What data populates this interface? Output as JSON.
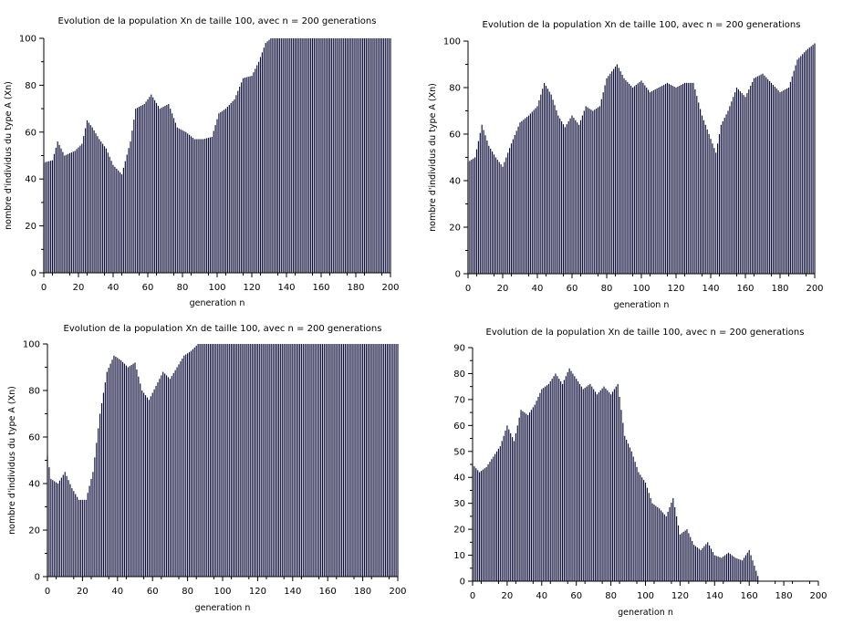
{
  "chart_data": [
    {
      "type": "bar",
      "title": "Evolution de la population Xn de taille 100, avec n = 200 generations",
      "xlabel": "generation n",
      "ylabel": "nombre d'individus du type A (Xn)",
      "xlim": [
        0,
        200
      ],
      "ylim": [
        0,
        100
      ],
      "xticks": [
        "0",
        "20",
        "40",
        "60",
        "80",
        "100",
        "120",
        "140",
        "160",
        "180",
        "200"
      ],
      "yticks": [
        "0",
        "20",
        "40",
        "60",
        "80",
        "100"
      ],
      "keypoints": [
        [
          0,
          47
        ],
        [
          5,
          48
        ],
        [
          8,
          56
        ],
        [
          12,
          50
        ],
        [
          18,
          52
        ],
        [
          22,
          55
        ],
        [
          25,
          65
        ],
        [
          28,
          62
        ],
        [
          32,
          57
        ],
        [
          36,
          53
        ],
        [
          40,
          46
        ],
        [
          45,
          42
        ],
        [
          50,
          56
        ],
        [
          53,
          70
        ],
        [
          58,
          72
        ],
        [
          62,
          76
        ],
        [
          67,
          70
        ],
        [
          72,
          72
        ],
        [
          77,
          62
        ],
        [
          82,
          60
        ],
        [
          87,
          57
        ],
        [
          92,
          57
        ],
        [
          97,
          58
        ],
        [
          101,
          68
        ],
        [
          105,
          70
        ],
        [
          110,
          74
        ],
        [
          115,
          83
        ],
        [
          120,
          84
        ],
        [
          124,
          90
        ],
        [
          128,
          98
        ],
        [
          131,
          100
        ],
        [
          200,
          100
        ]
      ]
    },
    {
      "type": "bar",
      "title": "Evolution de la population Xn de taille 100, avec n = 200 generations",
      "xlabel": "generation n",
      "ylabel": "nombre d'individus du type A (Xn)",
      "xlim": [
        0,
        200
      ],
      "ylim": [
        0,
        100
      ],
      "xticks": [
        "0",
        "20",
        "40",
        "60",
        "80",
        "100",
        "120",
        "140",
        "160",
        "180",
        "200"
      ],
      "yticks": [
        "0",
        "20",
        "40",
        "60",
        "80",
        "100"
      ],
      "keypoints": [
        [
          0,
          48
        ],
        [
          4,
          50
        ],
        [
          8,
          64
        ],
        [
          12,
          55
        ],
        [
          16,
          50
        ],
        [
          20,
          46
        ],
        [
          25,
          56
        ],
        [
          30,
          65
        ],
        [
          35,
          68
        ],
        [
          40,
          72
        ],
        [
          44,
          82
        ],
        [
          48,
          77
        ],
        [
          52,
          68
        ],
        [
          56,
          63
        ],
        [
          60,
          68
        ],
        [
          64,
          64
        ],
        [
          68,
          72
        ],
        [
          72,
          70
        ],
        [
          76,
          72
        ],
        [
          80,
          84
        ],
        [
          86,
          90
        ],
        [
          90,
          84
        ],
        [
          95,
          80
        ],
        [
          100,
          83
        ],
        [
          105,
          78
        ],
        [
          110,
          80
        ],
        [
          115,
          82
        ],
        [
          120,
          80
        ],
        [
          125,
          82
        ],
        [
          130,
          82
        ],
        [
          135,
          68
        ],
        [
          140,
          58
        ],
        [
          143,
          52
        ],
        [
          146,
          64
        ],
        [
          150,
          70
        ],
        [
          155,
          80
        ],
        [
          160,
          76
        ],
        [
          165,
          84
        ],
        [
          170,
          86
        ],
        [
          175,
          82
        ],
        [
          180,
          78
        ],
        [
          185,
          80
        ],
        [
          190,
          92
        ],
        [
          195,
          96
        ],
        [
          200,
          99
        ]
      ]
    },
    {
      "type": "bar",
      "title": "Evolution de la population Xn de taille 100, avec n = 200 generations",
      "xlabel": "generation n",
      "ylabel": "nombre d'individus du type A (Xn)",
      "xlim": [
        0,
        200
      ],
      "ylim": [
        0,
        100
      ],
      "xticks": [
        "0",
        "20",
        "40",
        "60",
        "80",
        "100",
        "120",
        "140",
        "160",
        "180",
        "200"
      ],
      "yticks": [
        "0",
        "20",
        "40",
        "60",
        "80",
        "100"
      ],
      "keypoints": [
        [
          0,
          52
        ],
        [
          2,
          42
        ],
        [
          6,
          40
        ],
        [
          10,
          45
        ],
        [
          14,
          38
        ],
        [
          18,
          33
        ],
        [
          22,
          33
        ],
        [
          26,
          45
        ],
        [
          30,
          70
        ],
        [
          34,
          88
        ],
        [
          38,
          95
        ],
        [
          42,
          93
        ],
        [
          46,
          90
        ],
        [
          50,
          92
        ],
        [
          54,
          80
        ],
        [
          58,
          76
        ],
        [
          62,
          82
        ],
        [
          66,
          88
        ],
        [
          70,
          85
        ],
        [
          74,
          90
        ],
        [
          78,
          95
        ],
        [
          82,
          97
        ],
        [
          86,
          100
        ],
        [
          200,
          100
        ]
      ]
    },
    {
      "type": "bar",
      "title": "Evolution de la population Xn de taille 100, avec n = 200 generations",
      "xlabel": "generation n",
      "ylabel": "",
      "xlim": [
        0,
        200
      ],
      "ylim": [
        0,
        90
      ],
      "xticks": [
        "0",
        "20",
        "40",
        "60",
        "80",
        "100",
        "120",
        "140",
        "160",
        "180",
        "200"
      ],
      "yticks": [
        "0",
        "10",
        "20",
        "30",
        "40",
        "50",
        "60",
        "70",
        "80",
        "90"
      ],
      "keypoints": [
        [
          0,
          45
        ],
        [
          4,
          42
        ],
        [
          8,
          44
        ],
        [
          12,
          48
        ],
        [
          16,
          52
        ],
        [
          20,
          60
        ],
        [
          24,
          54
        ],
        [
          28,
          66
        ],
        [
          32,
          64
        ],
        [
          36,
          68
        ],
        [
          40,
          74
        ],
        [
          44,
          76
        ],
        [
          48,
          80
        ],
        [
          52,
          76
        ],
        [
          56,
          82
        ],
        [
          60,
          78
        ],
        [
          64,
          74
        ],
        [
          68,
          76
        ],
        [
          72,
          72
        ],
        [
          76,
          75
        ],
        [
          80,
          72
        ],
        [
          84,
          76
        ],
        [
          88,
          56
        ],
        [
          92,
          50
        ],
        [
          96,
          42
        ],
        [
          100,
          38
        ],
        [
          104,
          30
        ],
        [
          108,
          28
        ],
        [
          112,
          25
        ],
        [
          116,
          32
        ],
        [
          120,
          18
        ],
        [
          124,
          20
        ],
        [
          128,
          14
        ],
        [
          132,
          12
        ],
        [
          136,
          15
        ],
        [
          140,
          10
        ],
        [
          144,
          9
        ],
        [
          148,
          11
        ],
        [
          152,
          9
        ],
        [
          156,
          8
        ],
        [
          160,
          12
        ],
        [
          163,
          6
        ],
        [
          166,
          0
        ],
        [
          200,
          0
        ]
      ]
    }
  ]
}
